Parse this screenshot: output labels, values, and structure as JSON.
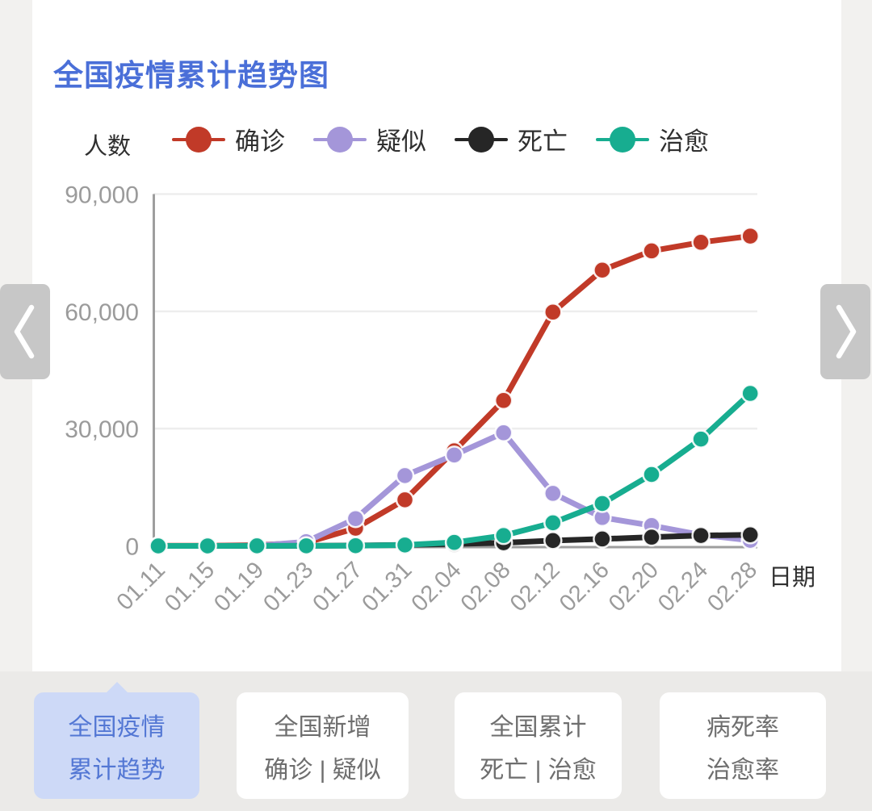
{
  "page": {
    "title": "全国疫情累计趋势图"
  },
  "carousel": {
    "prev_icon": "chevron-left",
    "next_icon": "chevron-right"
  },
  "chart_data": {
    "type": "line",
    "title": "全国疫情累计趋势图",
    "xlabel": "日期",
    "ylabel": "人数",
    "categories": [
      "01.11",
      "01.15",
      "01.19",
      "01.23",
      "01.27",
      "01.31",
      "02.04",
      "02.08",
      "02.12",
      "02.16",
      "02.20",
      "02.24",
      "02.28"
    ],
    "ylim": [
      0,
      90000
    ],
    "y_ticks": [
      0,
      30000,
      60000,
      90000
    ],
    "y_tick_labels": [
      "0",
      "30,000",
      "60,000",
      "90,000"
    ],
    "grid": true,
    "legend_position": "top",
    "series": [
      {
        "name": "确诊",
        "color": "#c13a28",
        "values": [
          41,
          41,
          198,
          830,
          4515,
          11791,
          24324,
          37198,
          59804,
          70548,
          75465,
          77658,
          79251
        ]
      },
      {
        "name": "疑似",
        "color": "#a496d9",
        "values": [
          0,
          0,
          54,
          1072,
          6973,
          17988,
          23260,
          28942,
          13435,
          7264,
          5206,
          2824,
          1418
        ]
      },
      {
        "name": "死亡",
        "color": "#262626",
        "values": [
          1,
          2,
          4,
          25,
          106,
          259,
          490,
          811,
          1367,
          1770,
          2236,
          2663,
          2835
        ]
      },
      {
        "name": "治愈",
        "color": "#17ad90",
        "values": [
          2,
          5,
          25,
          34,
          60,
          243,
          892,
          2649,
          5911,
          10844,
          18264,
          27323,
          39002
        ]
      }
    ]
  },
  "tabs": [
    {
      "lines": [
        "全国疫情",
        "累计趋势"
      ],
      "active": true
    },
    {
      "lines": [
        "全国新增",
        "确诊 | 疑似"
      ],
      "active": false
    },
    {
      "lines": [
        "全国累计",
        "死亡 | 治愈"
      ],
      "active": false
    },
    {
      "lines": [
        "病死率",
        "治愈率"
      ],
      "active": false
    }
  ]
}
